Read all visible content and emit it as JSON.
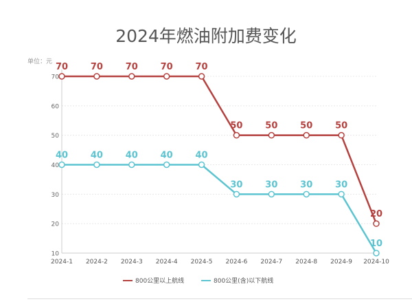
{
  "chart_data": {
    "type": "line",
    "title": "2024年燃油附加费变化",
    "unit_label": "单位：元",
    "categories": [
      "2024-1",
      "2024-2",
      "2024-3",
      "2024-4",
      "2024-5",
      "2024-6",
      "2024-7",
      "2024-8",
      "2024-9",
      "2024-10"
    ],
    "ylim": [
      10,
      70
    ],
    "yticks": [
      10,
      20,
      30,
      40,
      50,
      60,
      70
    ],
    "grid": true,
    "legend_position": "bottom",
    "series": [
      {
        "name": "800公里以上航线",
        "color": "#b5413f",
        "values": [
          70,
          70,
          70,
          70,
          70,
          50,
          50,
          50,
          50,
          20
        ]
      },
      {
        "name": "800公里(含)以下航线",
        "color": "#5bc4d0",
        "values": [
          40,
          40,
          40,
          40,
          40,
          30,
          30,
          30,
          30,
          10
        ]
      }
    ]
  }
}
